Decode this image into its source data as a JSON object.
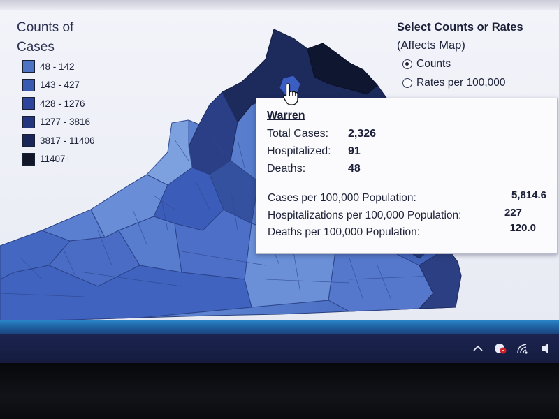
{
  "legend": {
    "title": "Counts of Cases",
    "items": [
      {
        "label": "48 - 142",
        "color": "#4f73c4"
      },
      {
        "label": "143 - 427",
        "color": "#3a5ab2"
      },
      {
        "label": "428 - 1276",
        "color": "#2c449c"
      },
      {
        "label": "1277 - 3816",
        "color": "#22357d"
      },
      {
        "label": "3817 - 11406",
        "color": "#1a2657"
      },
      {
        "label": "11407+",
        "color": "#111728"
      }
    ]
  },
  "selector": {
    "title": "Select Counts or Rates",
    "subtitle": "(Affects Map)",
    "options": [
      {
        "label": "Counts",
        "checked": true
      },
      {
        "label": "Rates per 100,000",
        "checked": false
      }
    ]
  },
  "tooltip": {
    "county": "Warren",
    "rows": [
      {
        "label": "Total Cases:",
        "value": "2,326"
      },
      {
        "label": "Hospitalized:",
        "value": "91"
      },
      {
        "label": "Deaths:",
        "value": "48"
      }
    ],
    "rates": [
      {
        "label": "Cases per 100,000 Population:",
        "value": "5,814.6"
      },
      {
        "label": "Hospitalizations per 100,000 Population:",
        "value": "227"
      },
      {
        "label": "Deaths per 100,000 Population:",
        "value": "120.0"
      }
    ]
  },
  "tray": {
    "icons": [
      "chevron-up-icon",
      "security-icon",
      "wifi-icon",
      "speaker-icon"
    ]
  }
}
